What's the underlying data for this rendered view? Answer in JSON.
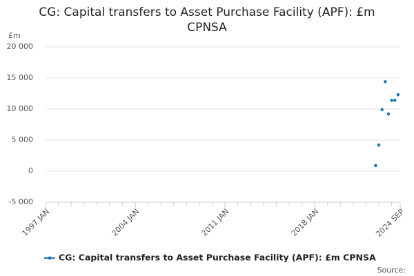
{
  "chart_data": {
    "type": "scatter",
    "title": [
      "CG: Capital transfers to Asset Purchase Facility (APF): £m",
      "CPNSA"
    ],
    "y_unit": "£m",
    "x": [
      "2022 OCT",
      "2023 JAN",
      "2023 APR",
      "2023 JUL",
      "2023 OCT",
      "2024 JAN",
      "2024 APR",
      "2024 JUL"
    ],
    "series": [
      {
        "name": "CG: Capital transfers to Asset Purchase Facility (APF): £m CPNSA",
        "color": "#1a7ab8",
        "values": [
          900,
          4200,
          9900,
          14400,
          9200,
          11400,
          11400,
          12300
        ]
      }
    ],
    "xlim": [
      "1997 JAN",
      "2024 SEP"
    ],
    "xticks": [
      "1997 JAN",
      "2004 JAN",
      "2011 JAN",
      "2018 JAN",
      "2024 SEP"
    ],
    "ylim": [
      -5000,
      20000
    ],
    "yticks": [
      {
        "value": -5000,
        "label": "-5 000"
      },
      0,
      {
        "value": 5000,
        "label": "5 000"
      },
      {
        "value": 10000,
        "label": "10 000"
      },
      {
        "value": 15000,
        "label": "15 000"
      },
      {
        "value": 20000,
        "label": "20 000"
      }
    ],
    "grid": true,
    "source_label": "Source:"
  }
}
